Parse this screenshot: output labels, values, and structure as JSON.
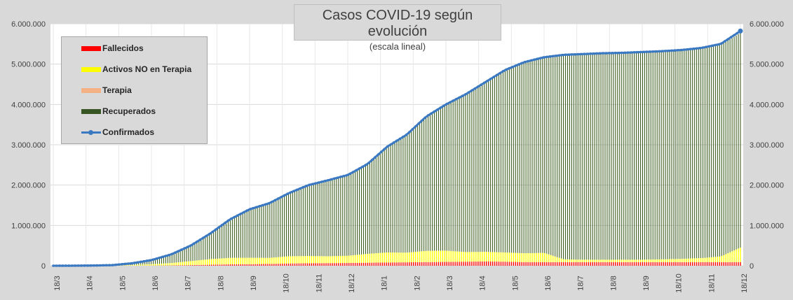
{
  "chart_data": {
    "type": "area",
    "title": "Casos COVID-19 según evolución",
    "subtitle": "(escala lineal)",
    "y_ticks": [
      "0",
      "1.000.000",
      "2.000.000",
      "3.000.000",
      "4.000.000",
      "5.000.000",
      "6.000.000"
    ],
    "ylim": [
      0,
      6000000
    ],
    "x_ticks": [
      "18/3",
      "18/4",
      "18/5",
      "18/6",
      "18/7",
      "18/8",
      "18/9",
      "18/10",
      "18/11",
      "18/12",
      "18/1",
      "18/2",
      "18/3",
      "18/4",
      "18/5",
      "18/6",
      "18/7",
      "18/8",
      "18/9",
      "18/10",
      "18/11",
      "18/12"
    ],
    "grid": true,
    "legend_position": "top-left",
    "legend": [
      {
        "name": "Fallecidos",
        "color": "#ff0000",
        "kind": "bar"
      },
      {
        "name": "Activos NO en Terapia",
        "color": "#ffff00",
        "kind": "bar"
      },
      {
        "name": "Terapia",
        "color": "#f4b183",
        "kind": "bar"
      },
      {
        "name": "Recuperados",
        "color": "#375623",
        "kind": "bar"
      },
      {
        "name": "Confirmados",
        "color": "#3a78c2",
        "kind": "line"
      }
    ],
    "series": [
      {
        "name": "Confirmados",
        "values": [
          0,
          1000,
          5000,
          15000,
          60000,
          140000,
          280000,
          500000,
          800000,
          1150000,
          1400000,
          1550000,
          1800000,
          2000000,
          2120000,
          2250000,
          2520000,
          2950000,
          3250000,
          3700000,
          4000000,
          4250000,
          4550000,
          4850000,
          5050000,
          5170000,
          5230000,
          5250000,
          5270000,
          5280000,
          5300000,
          5320000,
          5350000,
          5400000,
          5500000,
          5820000
        ]
      },
      {
        "name": "Recuperados",
        "values": [
          0,
          500,
          3000,
          10000,
          40000,
          100000,
          210000,
          380000,
          630000,
          950000,
          1200000,
          1350000,
          1560000,
          1750000,
          1880000,
          2000000,
          2220000,
          2620000,
          2920000,
          3320000,
          3610000,
          3900000,
          4200000,
          4520000,
          4730000,
          4840000,
          5060000,
          5090000,
          5110000,
          5120000,
          5140000,
          5150000,
          5170000,
          5200000,
          5250000,
          5320000
        ]
      },
      {
        "name": "Activos NO en Terapia",
        "values": [
          0,
          400,
          1500,
          4500,
          17000,
          35000,
          60000,
          100000,
          140000,
          160000,
          160000,
          150000,
          180000,
          180000,
          170000,
          180000,
          220000,
          250000,
          240000,
          280000,
          280000,
          240000,
          240000,
          230000,
          220000,
          230000,
          70000,
          60000,
          60000,
          60000,
          60000,
          70000,
          80000,
          100000,
          140000,
          360000
        ]
      },
      {
        "name": "Fallecidos",
        "values": [
          0,
          50,
          200,
          500,
          1500,
          3500,
          7000,
          15000,
          25000,
          35000,
          38000,
          45000,
          55000,
          62000,
          65000,
          68000,
          75000,
          80000,
          85000,
          90000,
          95000,
          100000,
          105000,
          100000,
          90000,
          90000,
          90000,
          90000,
          90000,
          90000,
          90000,
          90000,
          90000,
          90000,
          90000,
          90000
        ]
      }
    ],
    "ticks_index": [
      0,
      1.666,
      3.333,
      5.0,
      6.666,
      8.333,
      10.0,
      11.666,
      13.333,
      15.0,
      16.666,
      18.333,
      20.0,
      21.666,
      23.333,
      25.0,
      26.666,
      28.333,
      30.0,
      31.666,
      33.333,
      35.0
    ]
  }
}
